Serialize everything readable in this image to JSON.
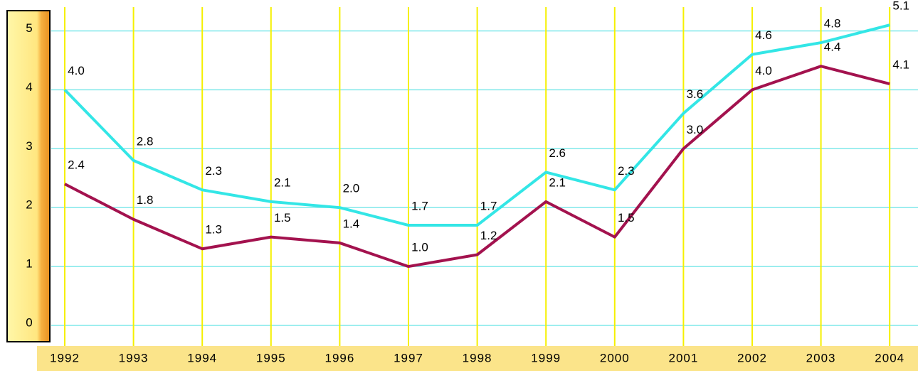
{
  "chart_data": {
    "type": "line",
    "categories": [
      "1992",
      "1993",
      "1994",
      "1995",
      "1996",
      "1997",
      "1998",
      "1999",
      "2000",
      "2001",
      "2002",
      "2003",
      "2004"
    ],
    "series": [
      {
        "color": "#33e6e6",
        "values": [
          4.0,
          2.8,
          2.3,
          2.1,
          2.0,
          1.7,
          1.7,
          2.6,
          2.3,
          3.6,
          4.6,
          4.8,
          5.1
        ],
        "value_labels": [
          "4.0",
          "2.8",
          "2.3",
          "2.1",
          "2.0",
          "1.7",
          "1.7",
          "2.6",
          "2.3",
          "3.6",
          "4.6",
          "4.8",
          "5.1"
        ]
      },
      {
        "color": "#a3124e",
        "values": [
          2.4,
          1.8,
          1.3,
          1.5,
          1.4,
          1.0,
          1.2,
          2.1,
          1.5,
          3.0,
          4.0,
          4.4,
          4.1
        ],
        "value_labels": [
          "2.4",
          "1.8",
          "1.3",
          "1.5",
          "1.4",
          "1.0",
          "1.2",
          "2.1",
          "1.5",
          "3.0",
          "4.0",
          "4.4",
          "4.1"
        ]
      }
    ],
    "ylim": [
      0,
      5.5
    ],
    "yticks": [
      0,
      1,
      2,
      3,
      4,
      5
    ],
    "grid": true
  }
}
